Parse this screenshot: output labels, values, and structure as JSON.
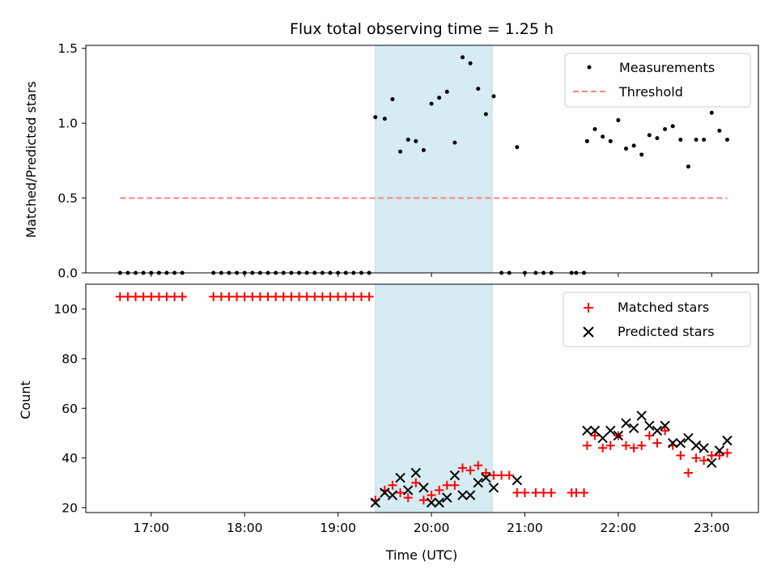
{
  "chart_data": {
    "title": "Flux total observing time = 1.25 h",
    "xlabel": "Time (UTC)",
    "x_unit": "hours UTC",
    "xlim": [
      16.3,
      23.5
    ],
    "x_ticks": [
      "17:00",
      "18:00",
      "19:00",
      "20:00",
      "21:00",
      "22:00",
      "23:00"
    ],
    "shaded_span": {
      "start": "19:24",
      "end": "20:39",
      "color": "#add8e6"
    },
    "panels": [
      {
        "type": "scatter",
        "ylabel": "Matched/Predicted stars",
        "ylim": [
          0,
          1.52
        ],
        "y_ticks": [
          "0.0",
          "0.5",
          "1.0",
          "1.5"
        ],
        "legend_position": "top-right",
        "series": [
          {
            "name": "Measurements",
            "marker": "dot",
            "color": "#000000",
            "points": [
              [
                "16:40",
                0
              ],
              [
                "16:45",
                0
              ],
              [
                "16:50",
                0
              ],
              [
                "16:55",
                0
              ],
              [
                "17:00",
                0
              ],
              [
                "17:05",
                0
              ],
              [
                "17:10",
                0
              ],
              [
                "17:15",
                0
              ],
              [
                "17:20",
                0
              ],
              [
                "17:40",
                0
              ],
              [
                "17:45",
                0
              ],
              [
                "17:50",
                0
              ],
              [
                "17:55",
                0
              ],
              [
                "18:00",
                0
              ],
              [
                "18:05",
                0
              ],
              [
                "18:10",
                0
              ],
              [
                "18:15",
                0
              ],
              [
                "18:20",
                0
              ],
              [
                "18:25",
                0
              ],
              [
                "18:30",
                0
              ],
              [
                "18:35",
                0
              ],
              [
                "18:40",
                0
              ],
              [
                "18:45",
                0
              ],
              [
                "18:50",
                0
              ],
              [
                "18:55",
                0
              ],
              [
                "19:00",
                0
              ],
              [
                "19:05",
                0
              ],
              [
                "19:10",
                0
              ],
              [
                "19:15",
                0
              ],
              [
                "19:20",
                0
              ],
              [
                "19:24",
                1.04
              ],
              [
                "19:30",
                1.03
              ],
              [
                "19:35",
                1.16
              ],
              [
                "19:40",
                0.81
              ],
              [
                "19:45",
                0.89
              ],
              [
                "19:50",
                0.88
              ],
              [
                "19:55",
                0.82
              ],
              [
                "20:00",
                1.13
              ],
              [
                "20:05",
                1.17
              ],
              [
                "20:10",
                1.21
              ],
              [
                "20:15",
                0.87
              ],
              [
                "20:20",
                1.44
              ],
              [
                "20:25",
                1.4
              ],
              [
                "20:30",
                1.23
              ],
              [
                "20:35",
                1.06
              ],
              [
                "20:40",
                1.18
              ],
              [
                "20:45",
                0
              ],
              [
                "20:50",
                0
              ],
              [
                "20:55",
                0.84
              ],
              [
                "21:00",
                0
              ],
              [
                "21:07",
                0
              ],
              [
                "21:12",
                0
              ],
              [
                "21:17",
                0
              ],
              [
                "21:30",
                0
              ],
              [
                "21:33",
                0
              ],
              [
                "21:38",
                0
              ],
              [
                "21:40",
                0.88
              ],
              [
                "21:45",
                0.96
              ],
              [
                "21:50",
                0.91
              ],
              [
                "21:55",
                0.88
              ],
              [
                "22:00",
                1.02
              ],
              [
                "22:05",
                0.83
              ],
              [
                "22:10",
                0.85
              ],
              [
                "22:15",
                0.79
              ],
              [
                "22:20",
                0.92
              ],
              [
                "22:25",
                0.9
              ],
              [
                "22:30",
                0.96
              ],
              [
                "22:35",
                0.98
              ],
              [
                "22:40",
                0.89
              ],
              [
                "22:45",
                0.71
              ],
              [
                "22:50",
                0.89
              ],
              [
                "22:55",
                0.89
              ],
              [
                "23:00",
                1.07
              ],
              [
                "23:05",
                0.95
              ],
              [
                "23:10",
                0.89
              ]
            ]
          },
          {
            "name": "Threshold",
            "marker": "dashed-line",
            "color": "#ff7f7f",
            "points": [
              [
                "16:40",
                0.5
              ],
              [
                "23:10",
                0.5
              ]
            ]
          }
        ]
      },
      {
        "type": "scatter",
        "ylabel": "Count",
        "ylim": [
          18,
          110
        ],
        "y_ticks": [
          "20",
          "40",
          "60",
          "80",
          "100"
        ],
        "legend_position": "top-right",
        "series": [
          {
            "name": "Matched stars",
            "marker": "plus",
            "color": "#ff0000",
            "points": [
              [
                "16:40",
                105
              ],
              [
                "16:45",
                105
              ],
              [
                "16:50",
                105
              ],
              [
                "16:55",
                105
              ],
              [
                "17:00",
                105
              ],
              [
                "17:05",
                105
              ],
              [
                "17:10",
                105
              ],
              [
                "17:15",
                105
              ],
              [
                "17:20",
                105
              ],
              [
                "17:40",
                105
              ],
              [
                "17:45",
                105
              ],
              [
                "17:50",
                105
              ],
              [
                "17:55",
                105
              ],
              [
                "18:00",
                105
              ],
              [
                "18:05",
                105
              ],
              [
                "18:10",
                105
              ],
              [
                "18:15",
                105
              ],
              [
                "18:20",
                105
              ],
              [
                "18:25",
                105
              ],
              [
                "18:30",
                105
              ],
              [
                "18:35",
                105
              ],
              [
                "18:40",
                105
              ],
              [
                "18:45",
                105
              ],
              [
                "18:50",
                105
              ],
              [
                "18:55",
                105
              ],
              [
                "19:00",
                105
              ],
              [
                "19:05",
                105
              ],
              [
                "19:10",
                105
              ],
              [
                "19:15",
                105
              ],
              [
                "19:20",
                105
              ],
              [
                "19:24",
                23
              ],
              [
                "19:30",
                27
              ],
              [
                "19:35",
                29
              ],
              [
                "19:40",
                26
              ],
              [
                "19:45",
                24
              ],
              [
                "19:50",
                30
              ],
              [
                "19:55",
                23
              ],
              [
                "20:00",
                25
              ],
              [
                "20:05",
                27
              ],
              [
                "20:10",
                29
              ],
              [
                "20:15",
                29
              ],
              [
                "20:20",
                36
              ],
              [
                "20:25",
                35
              ],
              [
                "20:30",
                37
              ],
              [
                "20:35",
                34
              ],
              [
                "20:40",
                33
              ],
              [
                "20:45",
                33
              ],
              [
                "20:50",
                33
              ],
              [
                "20:55",
                26
              ],
              [
                "21:00",
                26
              ],
              [
                "21:07",
                26
              ],
              [
                "21:12",
                26
              ],
              [
                "21:17",
                26
              ],
              [
                "21:30",
                26
              ],
              [
                "21:33",
                26
              ],
              [
                "21:38",
                26
              ],
              [
                "21:40",
                45
              ],
              [
                "21:45",
                49
              ],
              [
                "21:50",
                44
              ],
              [
                "21:55",
                45
              ],
              [
                "22:00",
                49
              ],
              [
                "22:05",
                45
              ],
              [
                "22:10",
                44
              ],
              [
                "22:15",
                45
              ],
              [
                "22:20",
                49
              ],
              [
                "22:25",
                46
              ],
              [
                "22:30",
                51
              ],
              [
                "22:35",
                45
              ],
              [
                "22:40",
                41
              ],
              [
                "22:45",
                34
              ],
              [
                "22:50",
                40
              ],
              [
                "22:55",
                39
              ],
              [
                "23:00",
                41
              ],
              [
                "23:05",
                41
              ],
              [
                "23:10",
                42
              ]
            ]
          },
          {
            "name": "Predicted stars",
            "marker": "x",
            "color": "#000000",
            "points": [
              [
                "19:24",
                22
              ],
              [
                "19:30",
                26
              ],
              [
                "19:35",
                25
              ],
              [
                "19:40",
                32
              ],
              [
                "19:45",
                27
              ],
              [
                "19:50",
                34
              ],
              [
                "19:55",
                28
              ],
              [
                "20:00",
                22
              ],
              [
                "20:05",
                22
              ],
              [
                "20:10",
                24
              ],
              [
                "20:15",
                33
              ],
              [
                "20:20",
                25
              ],
              [
                "20:25",
                25
              ],
              [
                "20:30",
                30
              ],
              [
                "20:35",
                32
              ],
              [
                "20:40",
                28
              ],
              [
                "20:55",
                31
              ],
              [
                "21:40",
                51
              ],
              [
                "21:45",
                51
              ],
              [
                "21:50",
                48
              ],
              [
                "21:55",
                51
              ],
              [
                "22:00",
                49
              ],
              [
                "22:05",
                54
              ],
              [
                "22:10",
                52
              ],
              [
                "22:15",
                57
              ],
              [
                "22:20",
                53
              ],
              [
                "22:25",
                51
              ],
              [
                "22:30",
                53
              ],
              [
                "22:35",
                46
              ],
              [
                "22:40",
                46
              ],
              [
                "22:45",
                48
              ],
              [
                "22:50",
                45
              ],
              [
                "22:55",
                44
              ],
              [
                "23:00",
                38
              ],
              [
                "23:05",
                43
              ],
              [
                "23:10",
                47
              ]
            ]
          }
        ]
      }
    ]
  }
}
